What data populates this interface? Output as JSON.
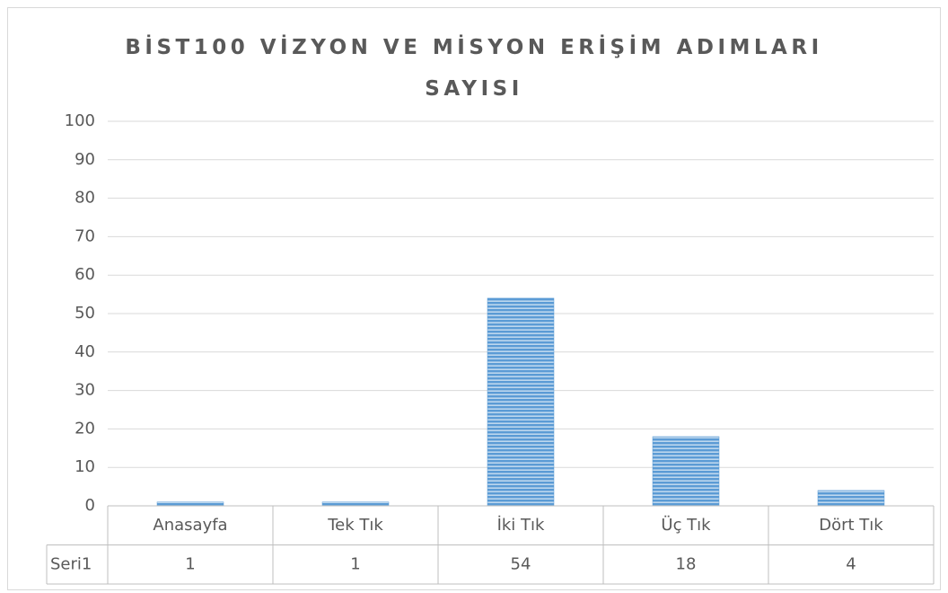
{
  "chart_data": {
    "type": "bar",
    "title": "BİST100 VİZYON VE MİSYON ERİŞİM ADIMLARI SAYISI",
    "categories": [
      "Anasayfa",
      "Tek Tık",
      "İki Tık",
      "Üç Tık",
      "Dört Tık"
    ],
    "series": [
      {
        "name": "Seri1",
        "color": "#5b9bd5",
        "values": [
          1,
          1,
          54,
          18,
          4
        ]
      }
    ],
    "ylim": [
      0,
      100
    ],
    "yticks": [
      0,
      10,
      20,
      30,
      40,
      50,
      60,
      70,
      80,
      90,
      100
    ],
    "grid": true,
    "data_table": true
  }
}
